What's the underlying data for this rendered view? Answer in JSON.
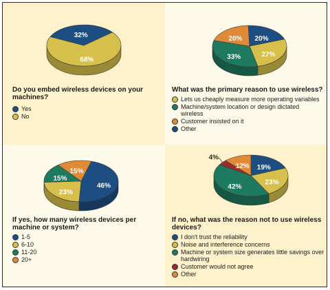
{
  "chart_data": [
    {
      "type": "pie",
      "question": "Do you embed wireless devices on your machines?",
      "slices": [
        {
          "label": "Yes",
          "value": 32,
          "display": "32%",
          "color": "#1d4e82"
        },
        {
          "label": "No",
          "value": 68,
          "display": "68%",
          "color": "#d6bf4a"
        }
      ]
    },
    {
      "type": "pie",
      "question": "What was the primary reason to use wireless?",
      "slices": [
        {
          "label": "Lets us cheaply measure more operating variables",
          "value": 27,
          "display": "27%",
          "color": "#d6bf4a"
        },
        {
          "label": "Machine/system location or design dictated wireless",
          "value": 33,
          "display": "33%",
          "color": "#1e7a5e"
        },
        {
          "label": "Customer insisted on it",
          "value": 20,
          "display": "20%",
          "color": "#e08a38"
        },
        {
          "label": "Other",
          "value": 20,
          "display": "20%",
          "color": "#1d4e82"
        }
      ]
    },
    {
      "type": "pie",
      "question": "If yes, how many wireless devices per machine or system?",
      "slices": [
        {
          "label": "1-5",
          "value": 46,
          "display": "46%",
          "color": "#1d4e82"
        },
        {
          "label": "6-10",
          "value": 23,
          "display": "23%",
          "color": "#d6bf4a"
        },
        {
          "label": "11-20",
          "value": 15,
          "display": "15%",
          "color": "#1e7a5e"
        },
        {
          "label": "20+",
          "value": 15,
          "display": "15%",
          "color": "#e08a38"
        }
      ]
    },
    {
      "type": "pie",
      "question": "If no, what was the reason not to use wireless devices?",
      "slices": [
        {
          "label": "I don't trust the reliability",
          "value": 19,
          "display": "19%",
          "color": "#1d4e82"
        },
        {
          "label": "Noise and interference concerns",
          "value": 23,
          "display": "23%",
          "color": "#d6bf4a"
        },
        {
          "label": "Machine or system size generates little savings over hardwiring",
          "value": 42,
          "display": "42%",
          "color": "#1e7a5e"
        },
        {
          "label": "Customer would not agree",
          "value": 4,
          "display": "4%",
          "color": "#9e2b2b"
        },
        {
          "label": "Other",
          "value": 12,
          "display": "12%",
          "color": "#e08a38"
        }
      ]
    }
  ]
}
